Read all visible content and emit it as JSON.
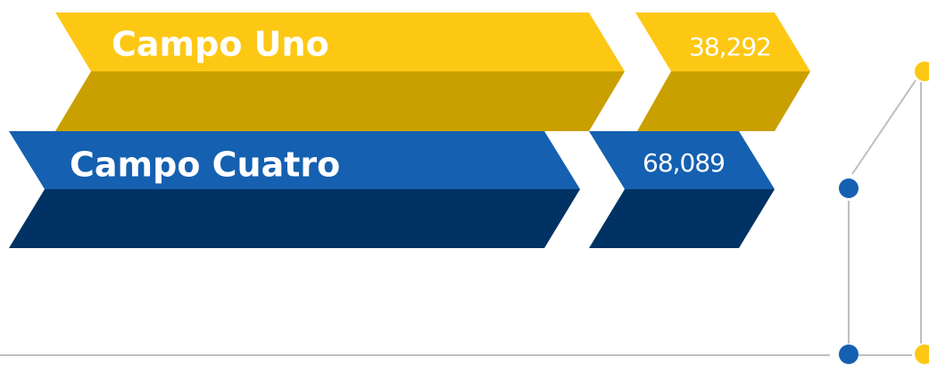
{
  "items": [
    {
      "label": "Campo Uno",
      "value": "38,292"
    },
    {
      "label": "Campo Cuatro",
      "value": "68,089"
    }
  ]
}
